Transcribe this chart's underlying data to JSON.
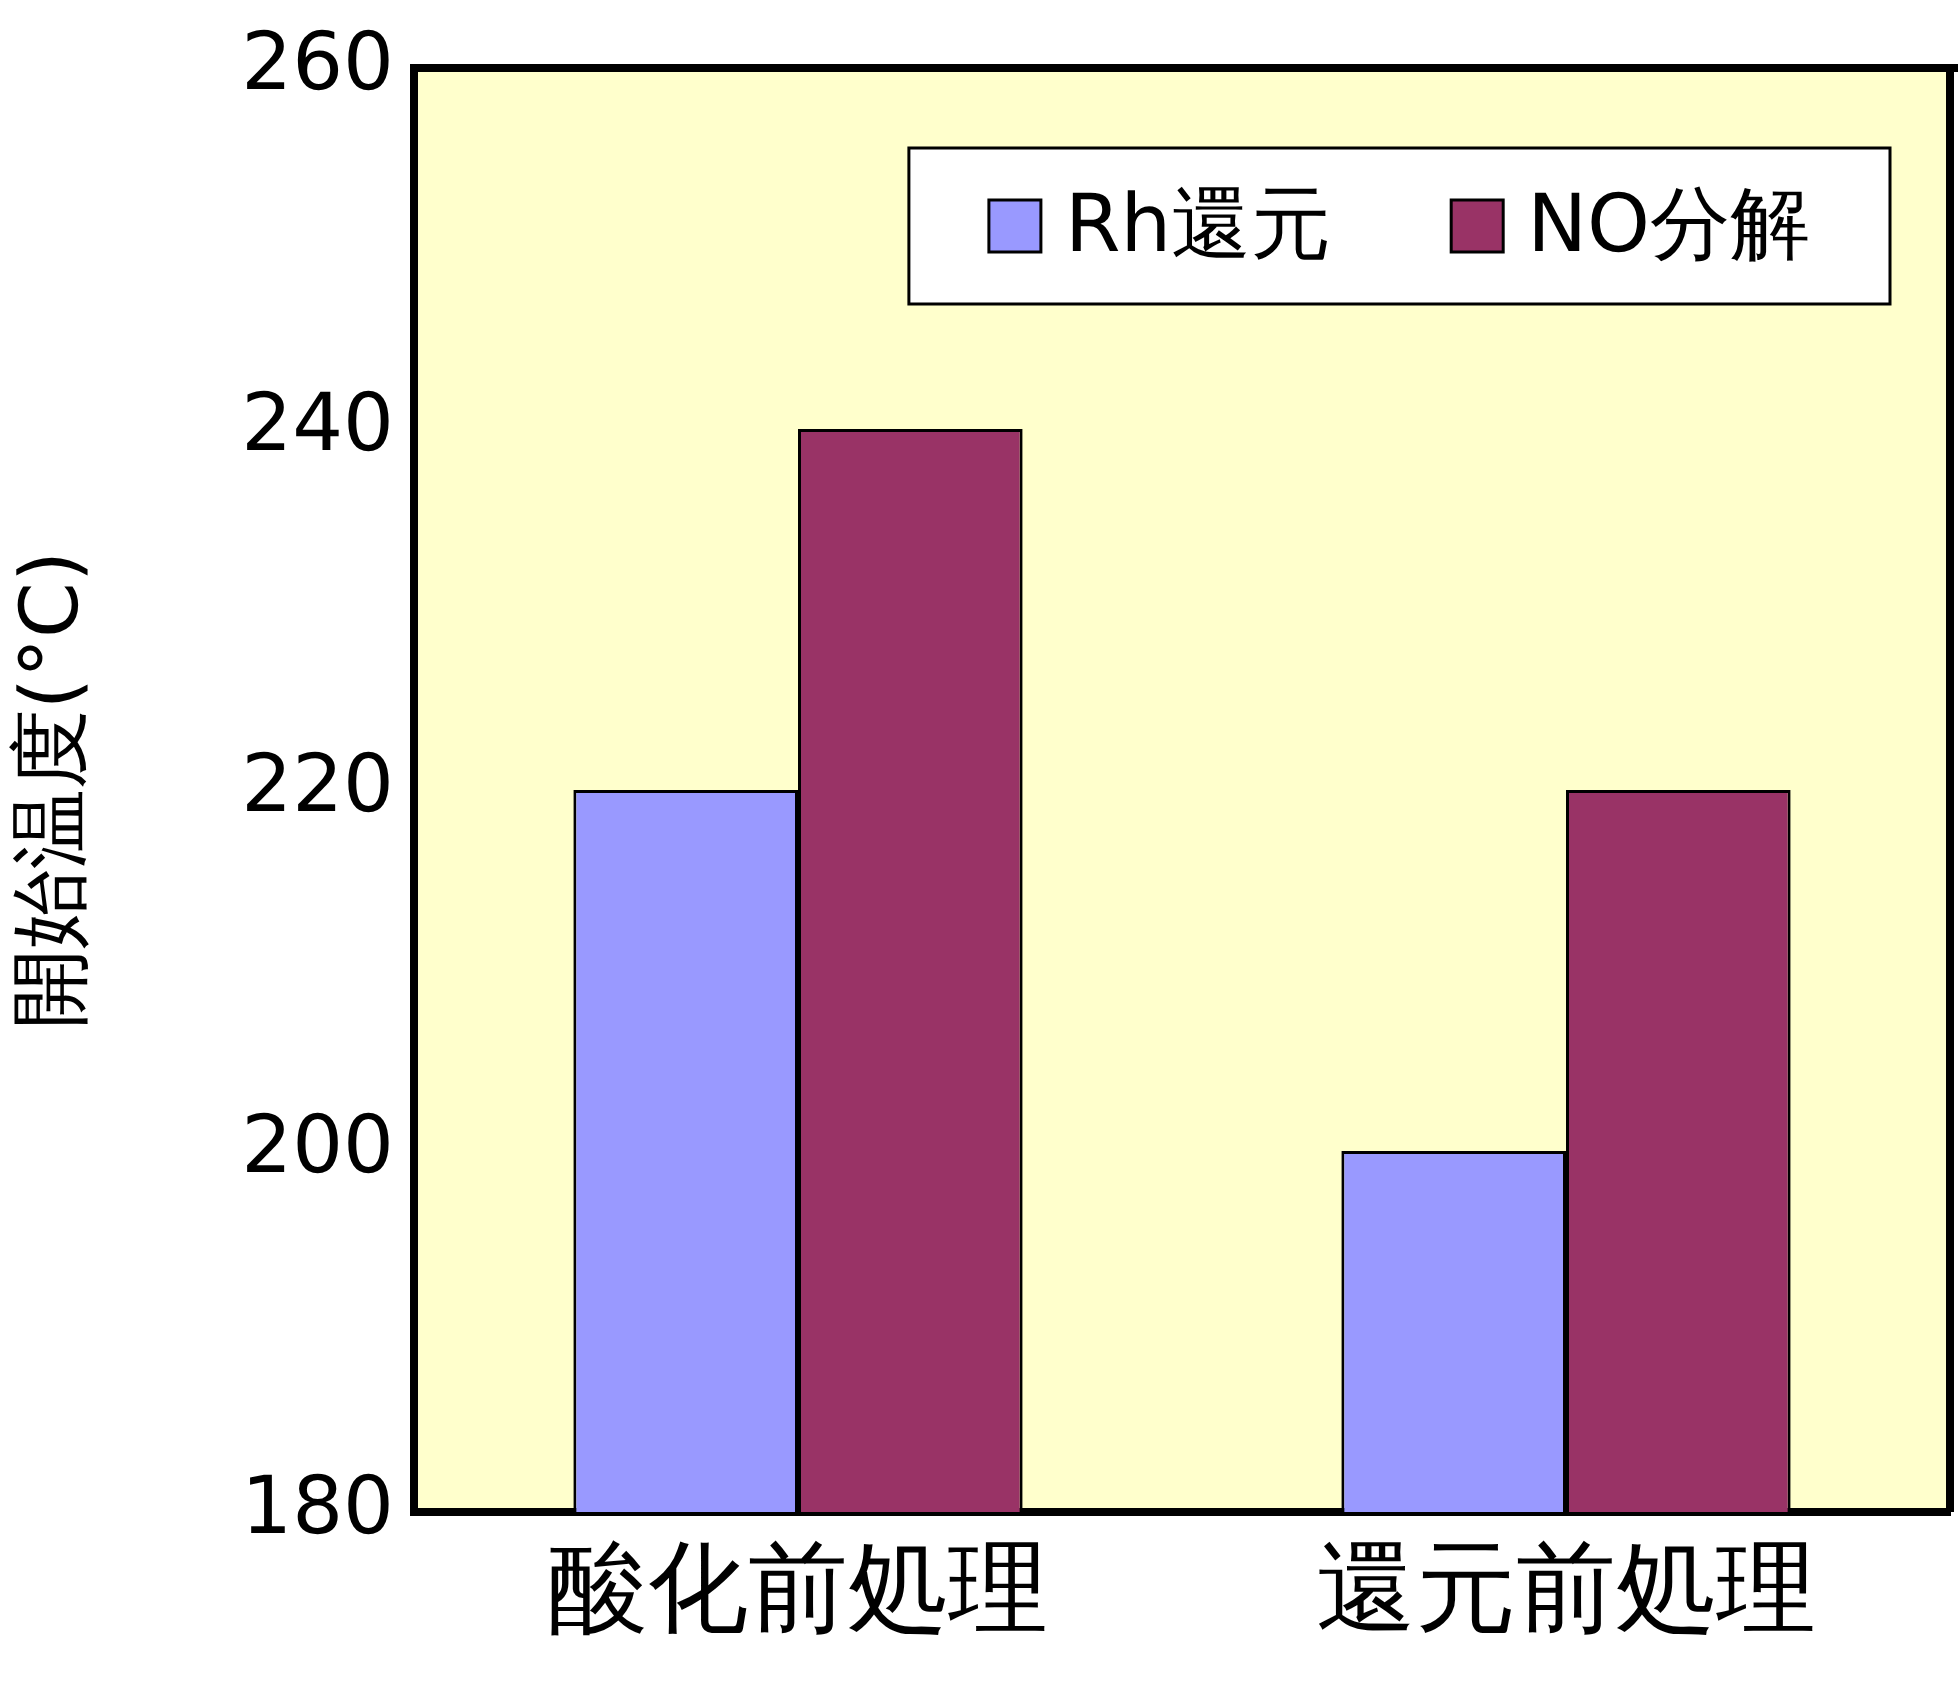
{
  "chart_data": {
    "type": "bar",
    "ylabel": "開始温度(°C)",
    "categories": [
      "酸化前処理",
      "還元前処理"
    ],
    "series": [
      {
        "name": "Rh還元",
        "color": "#9999ff",
        "values": [
          220,
          200
        ]
      },
      {
        "name": "NO分解",
        "color": "#993366",
        "values": [
          240,
          220
        ]
      }
    ],
    "ylim": [
      180,
      260
    ],
    "yticks": [
      180,
      200,
      220,
      240,
      260
    ],
    "legend": "top right"
  }
}
